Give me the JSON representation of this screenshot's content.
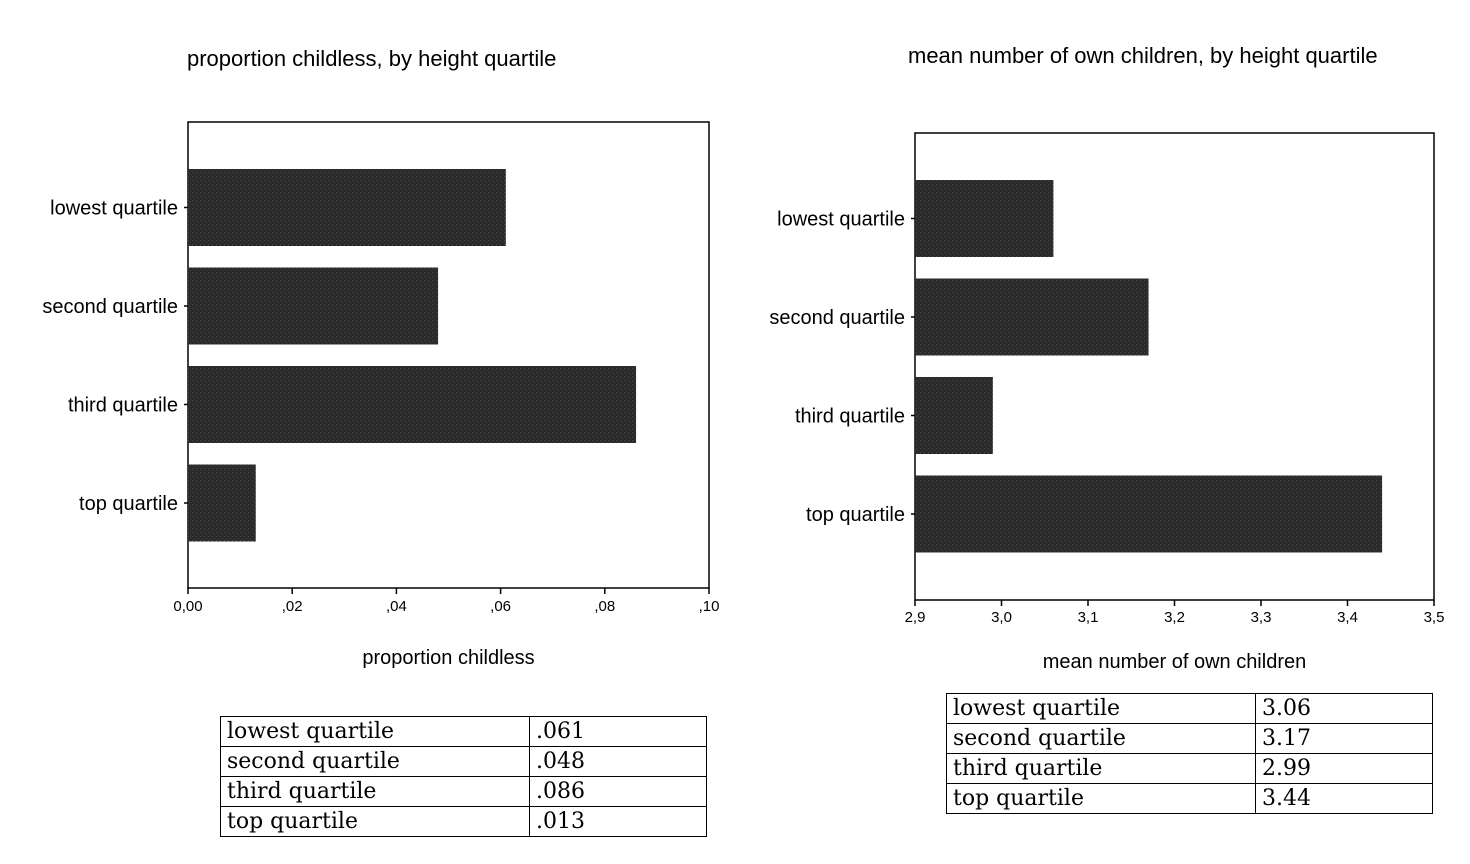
{
  "chart_data": [
    {
      "type": "bar",
      "orientation": "horizontal",
      "title": "proportion childless, by height quartile",
      "xlabel": "proportion childless",
      "ylabel": "",
      "categories": [
        "lowest quartile",
        "second quartile",
        "third quartile",
        "top quartile"
      ],
      "values": [
        0.061,
        0.048,
        0.086,
        0.013
      ],
      "xlim": [
        0,
        0.1
      ],
      "xticks": [
        0,
        0.02,
        0.04,
        0.06,
        0.08,
        0.1
      ],
      "xtick_labels": [
        "0,00",
        ",02",
        ",04",
        ",06",
        ",08",
        ",10"
      ],
      "grid": false,
      "bar_color": "#2b2b2b",
      "table": {
        "rows": [
          {
            "label": "lowest quartile",
            "value": ".061"
          },
          {
            "label": "second quartile",
            "value": ".048"
          },
          {
            "label": "third quartile",
            "value": ".086"
          },
          {
            "label": "top quartile",
            "value": ".013"
          }
        ]
      }
    },
    {
      "type": "bar",
      "orientation": "horizontal",
      "title": "mean number of own children, by height quartile",
      "xlabel": "mean number of own children",
      "ylabel": "",
      "categories": [
        "lowest quartile",
        "second quartile",
        "third quartile",
        "top quartile"
      ],
      "values": [
        3.06,
        3.17,
        2.99,
        3.44
      ],
      "xlim": [
        2.9,
        3.5
      ],
      "xticks": [
        2.9,
        3.0,
        3.1,
        3.2,
        3.3,
        3.4,
        3.5
      ],
      "xtick_labels": [
        "2,9",
        "3,0",
        "3,1",
        "3,2",
        "3,3",
        "3,4",
        "3,5"
      ],
      "grid": false,
      "bar_color": "#2b2b2b",
      "table": {
        "rows": [
          {
            "label": "lowest quartile",
            "value": "3.06"
          },
          {
            "label": "second quartile",
            "value": "3.17"
          },
          {
            "label": "third quartile",
            "value": "2.99"
          },
          {
            "label": "top quartile",
            "value": "3.44"
          }
        ]
      }
    }
  ]
}
